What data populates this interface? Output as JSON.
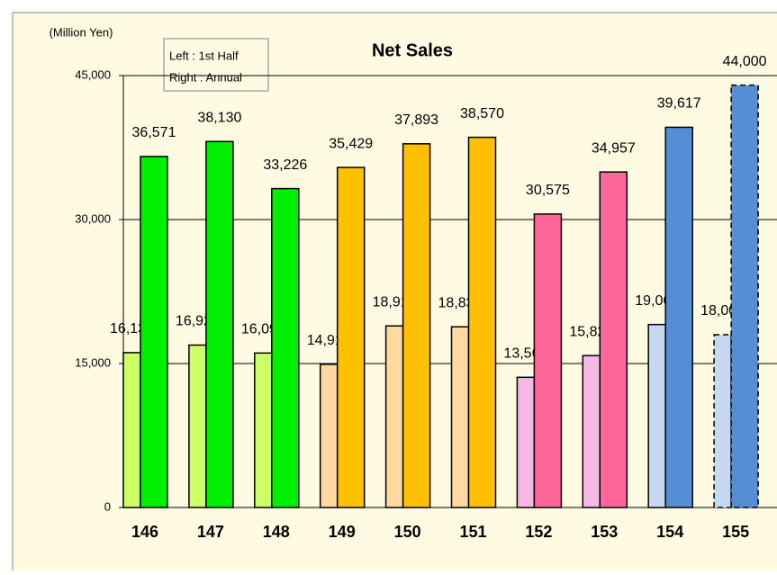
{
  "chart_data": {
    "type": "bar",
    "title": "Net Sales",
    "unit_label": "(Million Yen)",
    "legend": [
      "Left : 1st Half",
      "Right : Annual"
    ],
    "categories": [
      "146",
      "147",
      "148",
      "149",
      "150",
      "151",
      "152",
      "153",
      "154",
      "155"
    ],
    "series": [
      {
        "values": [
          16134,
          16922,
          16092,
          14919,
          18918,
          18830,
          13566,
          15826,
          19065,
          18000
        ],
        "value_labels": [
          "16,134",
          "16,922",
          "16,092",
          "14,919",
          "18,918",
          "18,830",
          "13,566",
          "15,826",
          "19,065",
          "18,000"
        ],
        "colors": [
          "#ccff66",
          "#ccff66",
          "#ccff66",
          "#ffd9a0",
          "#ffd9a0",
          "#ffd9a0",
          "#f4b8e4",
          "#f4b8e4",
          "#c6d9f1",
          "#c6d9f1"
        ]
      },
      {
        "values": [
          36571,
          38130,
          33226,
          35429,
          37893,
          38570,
          30575,
          34957,
          39617,
          44000
        ],
        "value_labels": [
          "36,571",
          "38,130",
          "33,226",
          "35,429",
          "37,893",
          "38,570",
          "30,575",
          "34,957",
          "39,617",
          "44,000"
        ],
        "colors": [
          "#00ee00",
          "#00ee00",
          "#00ee00",
          "#ffc000",
          "#ffc000",
          "#ffc000",
          "#ff6699",
          "#ff6699",
          "#558ed5",
          "#558ed5"
        ]
      }
    ],
    "dashed": [
      false,
      false,
      false,
      false,
      false,
      false,
      false,
      false,
      false,
      true
    ],
    "ylim": [
      0,
      45000
    ],
    "yticks": [
      0,
      {
        "value": 15000,
        "label": "15,000"
      },
      {
        "value": 30000,
        "label": "30,000"
      },
      {
        "value": 45000,
        "label": "45,000"
      }
    ],
    "grid": true
  }
}
